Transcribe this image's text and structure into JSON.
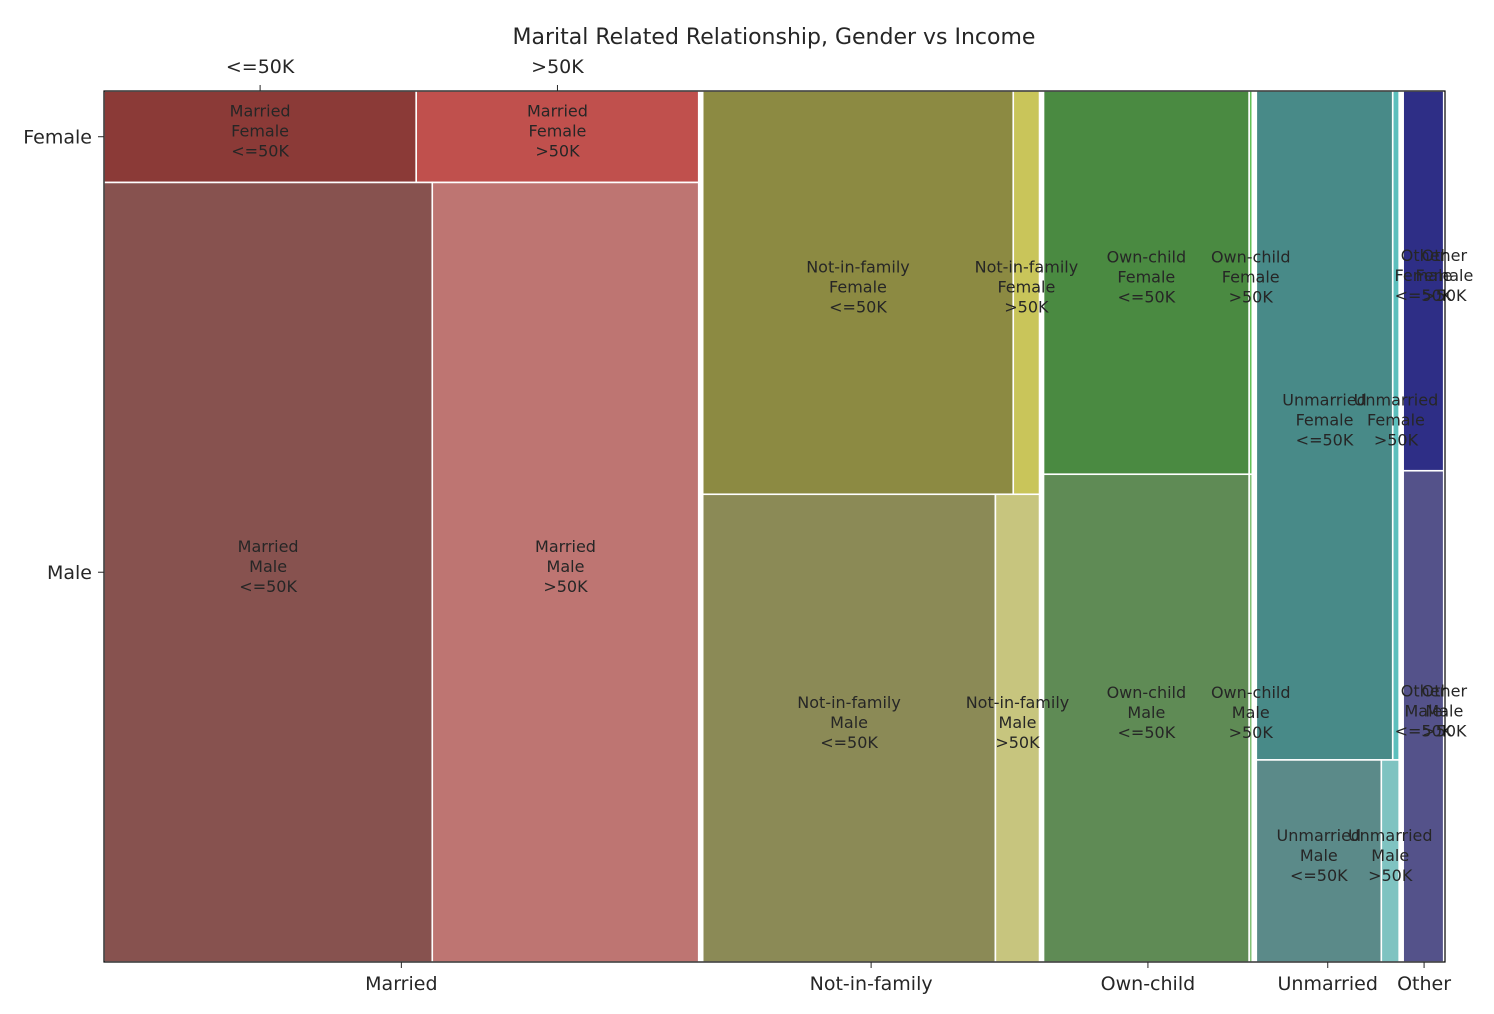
{
  "chart_data": {
    "type": "mosaic",
    "title": "Marital Related Relationship, Gender vs Income",
    "x_labels": [
      "Married",
      "Not-in-family",
      "Own-child",
      "Unmarried",
      "Other"
    ],
    "top_labels": [
      "<=50K",
      ">50K"
    ],
    "y_labels": [
      "Female",
      "Male"
    ],
    "x_fractions": [
      0.4421,
      0.2504,
      0.1552,
      0.1062,
      0.0311
    ],
    "cells": [
      {
        "relationship": "Married",
        "gender": "Female",
        "income": "<=50K",
        "share": 0.105,
        "col_share": 0.525,
        "color": "#8b3a37",
        "label": "Married\nFemale\n<=50K"
      },
      {
        "relationship": "Married",
        "gender": "Female",
        "income": ">50K",
        "share": 0.105,
        "col_share": 0.475,
        "color": "#c0504d",
        "label": "Married\nFemale\n>50K"
      },
      {
        "relationship": "Married",
        "gender": "Male",
        "income": "<=50K",
        "share": 0.895,
        "col_share": 0.552,
        "color": "#87524f",
        "label": "Married\nMale\n<=50K"
      },
      {
        "relationship": "Married",
        "gender": "Male",
        "income": ">50K",
        "share": 0.895,
        "col_share": 0.448,
        "color": "#be7572",
        "label": "Married\nMale\n>50K"
      },
      {
        "relationship": "Not-in-family",
        "gender": "Female",
        "income": "<=50K",
        "share": 0.463,
        "col_share": 0.922,
        "color": "#8c8a42",
        "label": "Not-in-family\nFemale\n<=50K"
      },
      {
        "relationship": "Not-in-family",
        "gender": "Female",
        "income": ">50K",
        "share": 0.463,
        "col_share": 0.078,
        "color": "#c9c55a",
        "label": "Not-in-family\nFemale\n>50K"
      },
      {
        "relationship": "Not-in-family",
        "gender": "Male",
        "income": "<=50K",
        "share": 0.537,
        "col_share": 0.869,
        "color": "#8b8a56",
        "label": "Not-in-family\nMale\n<=50K"
      },
      {
        "relationship": "Not-in-family",
        "gender": "Male",
        "income": ">50K",
        "share": 0.537,
        "col_share": 0.131,
        "color": "#c7c57e",
        "label": "Not-in-family\nMale\n>50K"
      },
      {
        "relationship": "Own-child",
        "gender": "Female",
        "income": "<=50K",
        "share": 0.44,
        "col_share": 0.985,
        "color": "#4a8a41",
        "label": "Own-child\nFemale\n<=50K"
      },
      {
        "relationship": "Own-child",
        "gender": "Female",
        "income": ">50K",
        "share": 0.44,
        "col_share": 0.015,
        "color": "#63c157",
        "label": "Own-child\nFemale\n>50K"
      },
      {
        "relationship": "Own-child",
        "gender": "Male",
        "income": "<=50K",
        "share": 0.56,
        "col_share": 0.985,
        "color": "#5f8b55",
        "label": "Own-child\nMale\n<=50K"
      },
      {
        "relationship": "Own-child",
        "gender": "Male",
        "income": ">50K",
        "share": 0.56,
        "col_share": 0.015,
        "color": "#83c276",
        "label": "Own-child\nMale\n>50K"
      },
      {
        "relationship": "Unmarried",
        "gender": "Female",
        "income": "<=50K",
        "share": 0.768,
        "col_share": 0.955,
        "color": "#488a88",
        "label": "Unmarried\nFemale\n<=50K"
      },
      {
        "relationship": "Unmarried",
        "gender": "Female",
        "income": ">50K",
        "share": 0.768,
        "col_share": 0.045,
        "color": "#5cbfbd",
        "label": "Unmarried\nFemale\n>50K"
      },
      {
        "relationship": "Unmarried",
        "gender": "Male",
        "income": "<=50K",
        "share": 0.232,
        "col_share": 0.875,
        "color": "#5b8a89",
        "label": "Unmarried\nMale\n<=50K"
      },
      {
        "relationship": "Unmarried",
        "gender": "Male",
        "income": ">50K",
        "share": 0.232,
        "col_share": 0.125,
        "color": "#7fc3c1",
        "label": "Unmarried\nMale\n>50K"
      },
      {
        "relationship": "Other",
        "gender": "Female",
        "income": "<=50K",
        "share": 0.436,
        "col_share": 0.97,
        "color": "#2e2e86",
        "label": "Other\nFemale\n<=50K"
      },
      {
        "relationship": "Other",
        "gender": "Female",
        "income": ">50K",
        "share": 0.436,
        "col_share": 0.03,
        "color": "#3b3bb5",
        "label": "Other\nFemale\n>50K"
      },
      {
        "relationship": "Other",
        "gender": "Male",
        "income": "<=50K",
        "share": 0.564,
        "col_share": 0.97,
        "color": "#54528a",
        "label": "Other\nMale\n<=50K"
      },
      {
        "relationship": "Other",
        "gender": "Male",
        "income": ">50K",
        "share": 0.564,
        "col_share": 0.03,
        "color": "#6e6bbb",
        "label": "Other\nMale\n>50K"
      }
    ]
  }
}
